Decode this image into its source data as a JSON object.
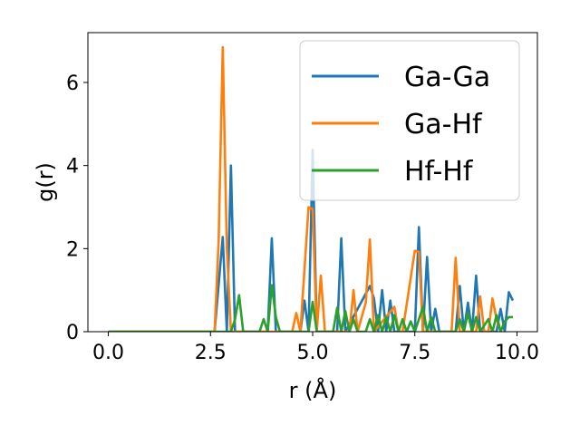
{
  "chart_data": {
    "type": "line",
    "xlabel": "r (Å)",
    "ylabel": "g(r)",
    "xlim": [
      -0.5,
      10.5
    ],
    "ylim": [
      0,
      7.2
    ],
    "xticks": [
      0.0,
      2.5,
      5.0,
      7.5,
      10.0
    ],
    "xtick_labels": [
      "0.0",
      "2.5",
      "5.0",
      "7.5",
      "10.0"
    ],
    "yticks": [
      0,
      2,
      4,
      6
    ],
    "ytick_labels": [
      "0",
      "2",
      "4",
      "6"
    ],
    "grid": false,
    "legend_position": "top-right",
    "series": [
      {
        "name": "Ga-Ga",
        "color": "#1f77b4",
        "x": [
          0.0,
          2.6,
          2.8,
          2.9,
          3.0,
          3.1,
          3.9,
          4.0,
          4.1,
          4.7,
          4.8,
          4.9,
          5.0,
          5.1,
          5.6,
          5.7,
          5.8,
          6.4,
          6.5,
          6.6,
          6.7,
          6.8,
          6.9,
          7.0,
          7.1,
          7.5,
          7.6,
          7.7,
          7.8,
          7.9,
          8.0,
          8.1,
          8.5,
          8.6,
          8.7,
          8.8,
          8.9,
          9.0,
          9.1,
          9.5,
          9.6,
          9.7,
          9.8,
          9.9
        ],
        "y": [
          0,
          0,
          2.28,
          0,
          4.0,
          0,
          0,
          2.25,
          0,
          0,
          0.75,
          0,
          4.38,
          0,
          0,
          2.25,
          0,
          1.1,
          0.8,
          0,
          1.0,
          0,
          0.75,
          0,
          0,
          0,
          2.52,
          0,
          1.8,
          0,
          0.55,
          0,
          0,
          1.1,
          0,
          0.7,
          0,
          1.35,
          0,
          0,
          0.55,
          0,
          0.95,
          0.75
        ]
      },
      {
        "name": "Ga-Hf",
        "color": "#ff7f0e",
        "x": [
          0.0,
          2.6,
          2.7,
          2.8,
          2.9,
          3.0,
          4.5,
          4.6,
          4.7,
          4.9,
          5.0,
          5.1,
          5.2,
          5.3,
          5.9,
          6.0,
          6.1,
          6.3,
          6.4,
          6.5,
          7.0,
          7.1,
          7.2,
          7.5,
          7.6,
          7.7,
          7.8,
          8.4,
          8.5,
          8.6,
          9.0,
          9.1,
          9.2,
          9.3,
          9.4,
          9.5,
          9.6
        ],
        "y": [
          0,
          0,
          2.2,
          6.85,
          2.0,
          0,
          0,
          0.45,
          0,
          3.0,
          2.95,
          0,
          1.35,
          0,
          0,
          1.0,
          0,
          0.7,
          2.22,
          0,
          0.6,
          0,
          0,
          1.95,
          1.92,
          0,
          0,
          0,
          1.78,
          0,
          0,
          0.85,
          0,
          0,
          0.8,
          0.3,
          0
        ]
      },
      {
        "name": "Hf-Hf",
        "color": "#2ca02c",
        "x": [
          0.0,
          3.0,
          3.1,
          3.2,
          3.3,
          3.7,
          3.8,
          3.9,
          4.0,
          4.1,
          4.2,
          4.9,
          5.0,
          5.1,
          5.5,
          5.6,
          5.7,
          5.8,
          5.9,
          6.0,
          6.1,
          6.3,
          6.4,
          6.5,
          6.6,
          6.7,
          6.8,
          6.9,
          7.0,
          7.1,
          7.2,
          7.3,
          7.4,
          7.5,
          7.6,
          7.7,
          7.8,
          7.9,
          8.0,
          8.5,
          8.6,
          8.7,
          8.8,
          8.9,
          9.0,
          9.1,
          9.3,
          9.4,
          9.5,
          9.6,
          9.7,
          9.8,
          9.9
        ],
        "y": [
          0,
          0,
          0.3,
          0.88,
          0,
          0,
          0.3,
          0,
          1.12,
          0.35,
          0,
          0,
          0.72,
          0,
          0,
          0.58,
          0,
          0.5,
          0,
          0.3,
          0,
          0,
          0.3,
          0,
          0.4,
          0,
          0.35,
          0,
          0.4,
          0,
          0.3,
          0,
          0.25,
          0,
          0.3,
          0.6,
          0,
          0.35,
          0,
          0,
          0.3,
          0,
          0.45,
          0,
          0.35,
          0,
          0.3,
          0,
          0.4,
          0,
          0.25,
          0.35,
          0.35
        ]
      }
    ]
  }
}
